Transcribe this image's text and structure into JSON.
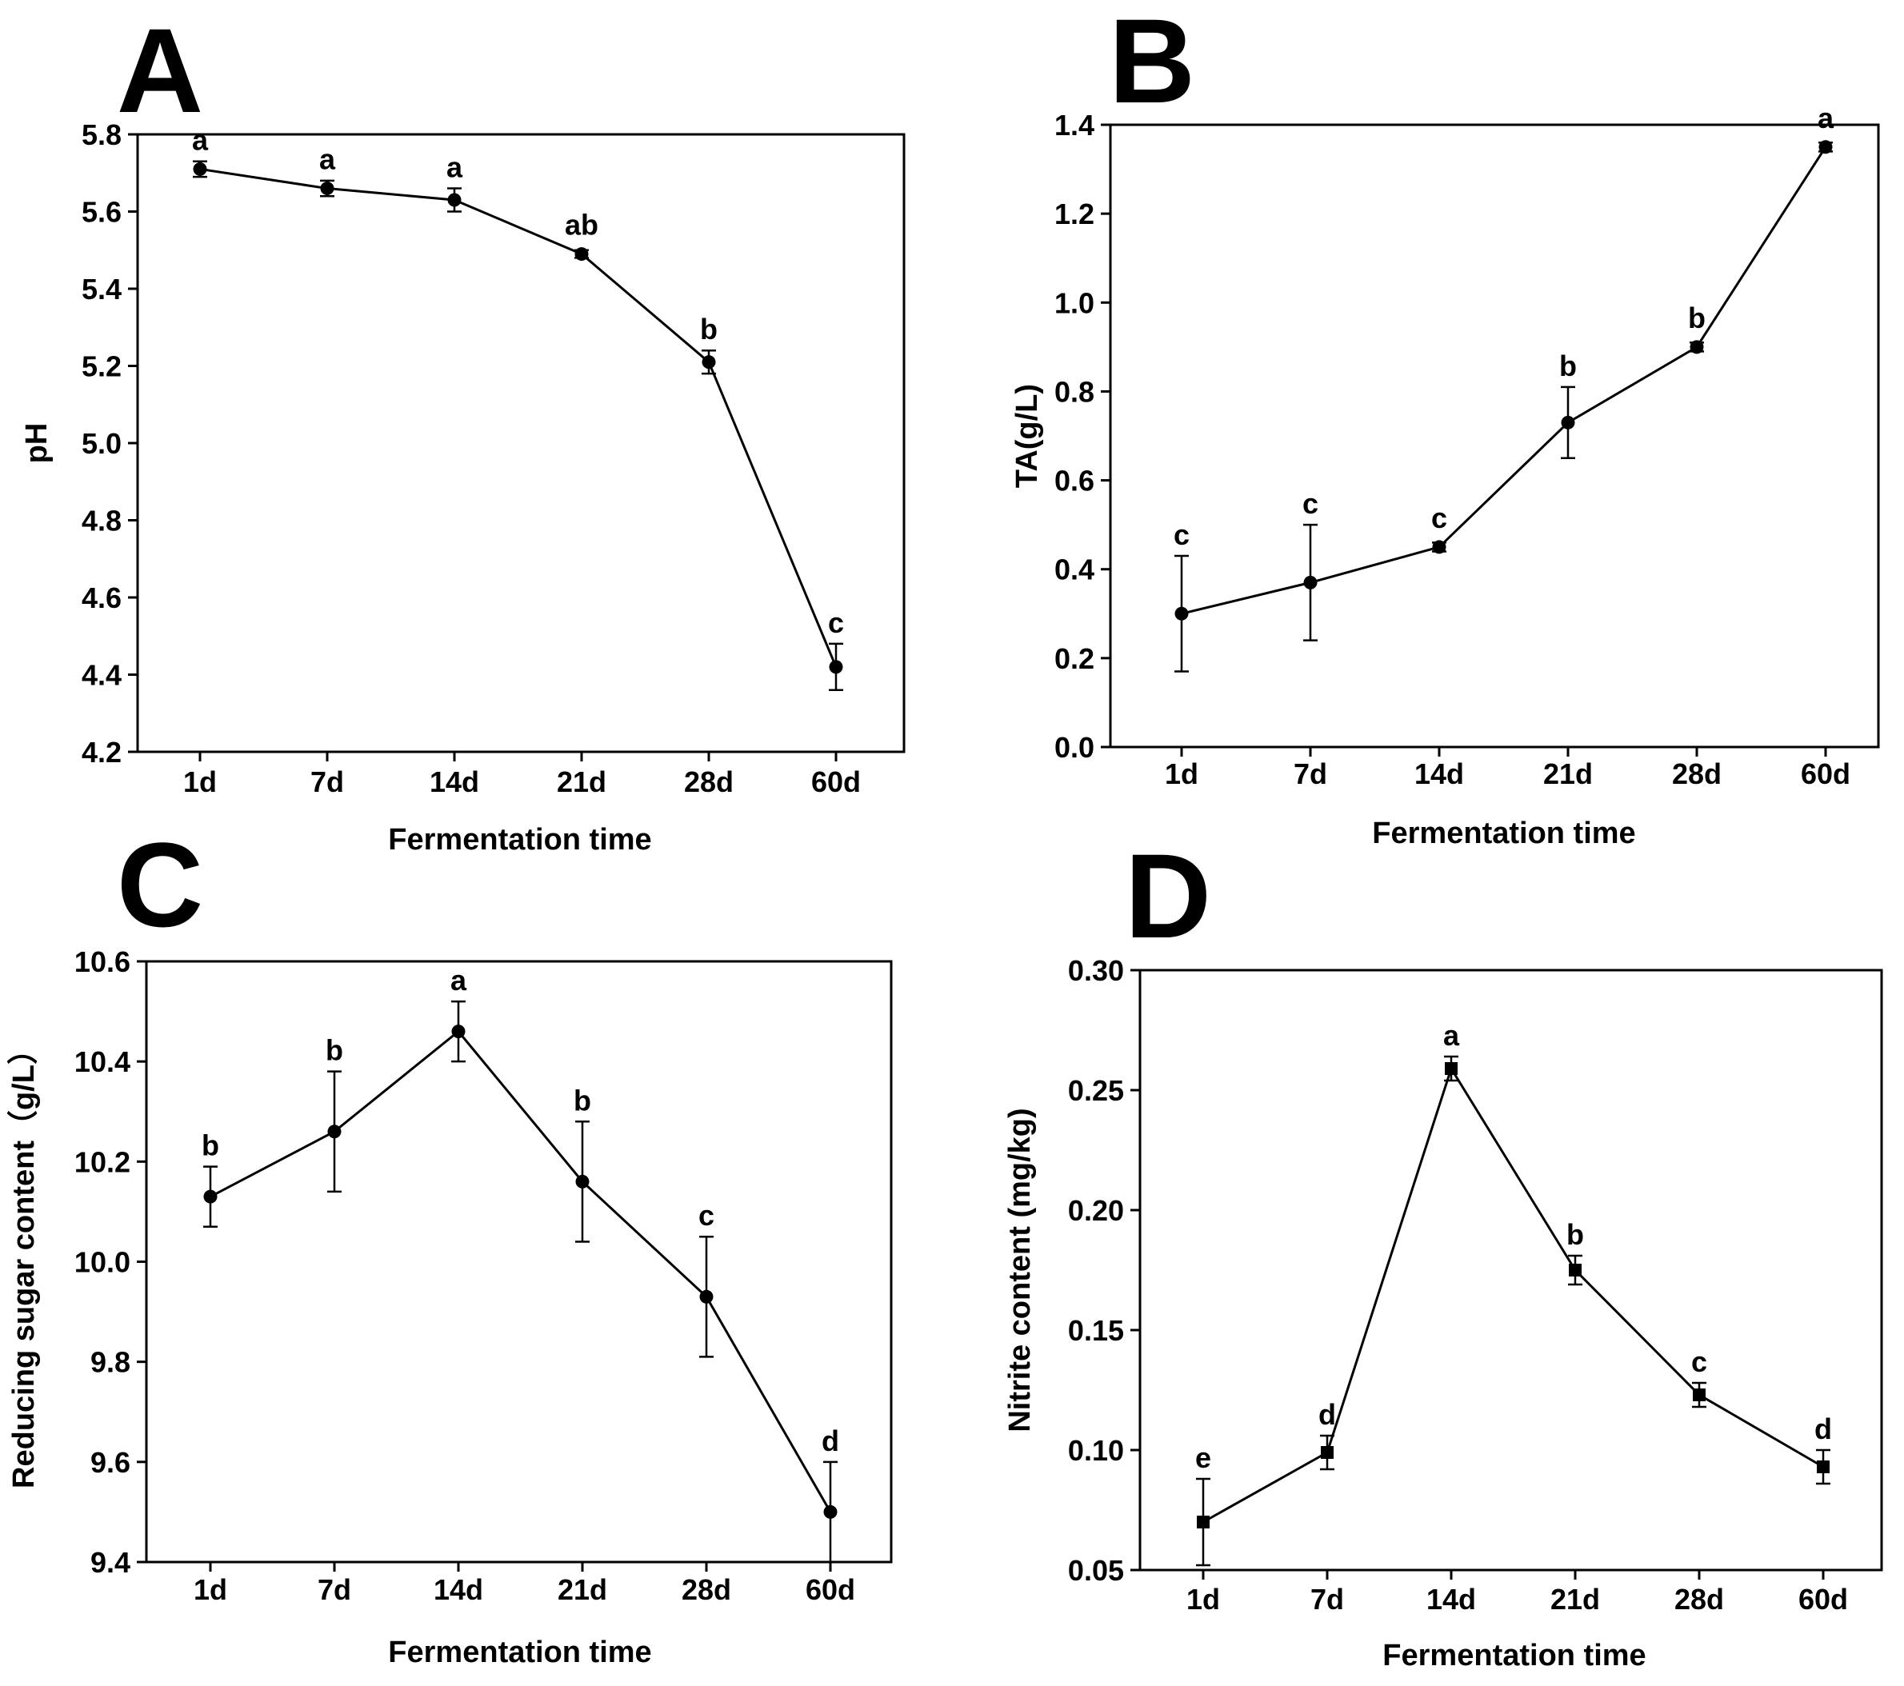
{
  "chart_data": [
    {
      "panel": "A",
      "type": "line",
      "categories": [
        "1d",
        "7d",
        "14d",
        "21d",
        "28d",
        "60d"
      ],
      "values": [
        5.71,
        5.66,
        5.63,
        5.49,
        5.21,
        4.42
      ],
      "errors": [
        0.02,
        0.02,
        0.03,
        0.01,
        0.03,
        0.06
      ],
      "labels": [
        "a",
        "a",
        "a",
        "ab",
        "b",
        "c"
      ],
      "xlabel": "Fermentation time",
      "ylabel": "pH",
      "ylim": [
        4.2,
        5.8
      ],
      "yticks": [
        "4.2",
        "4.4",
        "4.6",
        "4.8",
        "5.0",
        "5.2",
        "5.4",
        "5.6",
        "5.8"
      ],
      "marker": "circle"
    },
    {
      "panel": "B",
      "type": "line",
      "categories": [
        "1d",
        "7d",
        "14d",
        "21d",
        "28d",
        "60d"
      ],
      "values": [
        0.3,
        0.37,
        0.45,
        0.73,
        0.9,
        1.35
      ],
      "errors": [
        0.13,
        0.13,
        0.01,
        0.08,
        0.01,
        0.01
      ],
      "labels": [
        "c",
        "c",
        "c",
        "b",
        "b",
        "a"
      ],
      "xlabel": "Fermentation time",
      "ylabel": "TA(g/L)",
      "ylim": [
        0.0,
        1.4
      ],
      "yticks": [
        "0.0",
        "0.2",
        "0.4",
        "0.6",
        "0.8",
        "1.0",
        "1.2",
        "1.4"
      ],
      "marker": "circle"
    },
    {
      "panel": "C",
      "type": "line",
      "categories": [
        "1d",
        "7d",
        "14d",
        "21d",
        "28d",
        "60d"
      ],
      "values": [
        10.13,
        10.26,
        10.46,
        10.16,
        9.93,
        9.5
      ],
      "errors": [
        0.06,
        0.12,
        0.06,
        0.12,
        0.12,
        0.1
      ],
      "labels": [
        "b",
        "b",
        "a",
        "b",
        "c",
        "d"
      ],
      "xlabel": "Fermentation time",
      "ylabel": "Reducing sugar content（g/L）",
      "ylim": [
        9.4,
        10.6
      ],
      "yticks": [
        "9.4",
        "9.6",
        "9.8",
        "10.0",
        "10.2",
        "10.4",
        "10.6"
      ],
      "marker": "circle"
    },
    {
      "panel": "D",
      "type": "line",
      "categories": [
        "1d",
        "7d",
        "14d",
        "21d",
        "28d",
        "60d"
      ],
      "values": [
        0.07,
        0.099,
        0.259,
        0.175,
        0.123,
        0.093
      ],
      "errors": [
        0.018,
        0.007,
        0.005,
        0.006,
        0.005,
        0.007
      ],
      "labels": [
        "e",
        "d",
        "a",
        "b",
        "c",
        "d"
      ],
      "xlabel": "Fermentation time",
      "ylabel": "Nitrite content (mg/kg)",
      "ylim": [
        0.05,
        0.3
      ],
      "yticks": [
        "0.05",
        "0.10",
        "0.15",
        "0.20",
        "0.25",
        "0.30"
      ],
      "marker": "square"
    }
  ]
}
